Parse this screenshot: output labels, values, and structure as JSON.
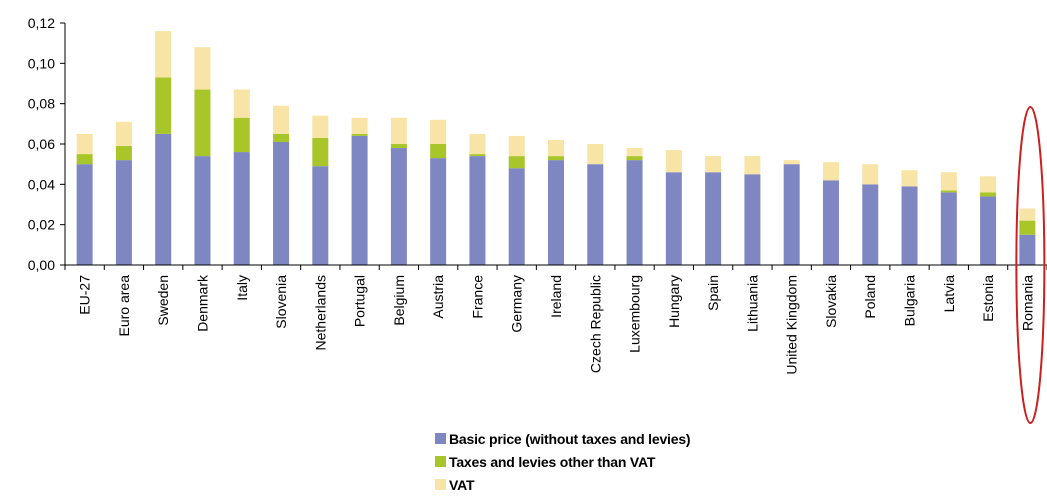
{
  "chart_data": {
    "type": "bar",
    "stacked": true,
    "title": "",
    "xlabel": "",
    "ylabel": "",
    "ylim": [
      0,
      0.12
    ],
    "y_ticks": [
      "0,00",
      "0,02",
      "0,04",
      "0,06",
      "0,08",
      "0,10",
      "0,12"
    ],
    "y_tick_values": [
      0,
      0.02,
      0.04,
      0.06,
      0.08,
      0.1,
      0.12
    ],
    "grid": "horizontal",
    "legend_position": "bottom",
    "categories": [
      "EU-27",
      "Euro area",
      "Sweden",
      "Denmark",
      "Italy",
      "Slovenia",
      "Netherlands",
      "Portugal",
      "Belgium",
      "Austria",
      "France",
      "Germany",
      "Ireland",
      "Czech Republic",
      "Luxembourg",
      "Hungary",
      "Spain",
      "Lithuania",
      "United Kingdom",
      "Slovakia",
      "Poland",
      "Bulgaria",
      "Latvia",
      "Estonia",
      "Romania"
    ],
    "series": [
      {
        "name": "Basic price (without taxes and levies)",
        "color": "#7f87c3",
        "values": [
          0.05,
          0.052,
          0.065,
          0.054,
          0.056,
          0.061,
          0.049,
          0.064,
          0.058,
          0.053,
          0.054,
          0.048,
          0.052,
          0.05,
          0.052,
          0.046,
          0.046,
          0.045,
          0.05,
          0.042,
          0.04,
          0.039,
          0.036,
          0.034,
          0.015
        ]
      },
      {
        "name": "Taxes and levies other than VAT",
        "color": "#a8c62a",
        "values": [
          0.005,
          0.007,
          0.028,
          0.033,
          0.017,
          0.004,
          0.014,
          0.001,
          0.002,
          0.007,
          0.001,
          0.006,
          0.002,
          0.0,
          0.002,
          0.0,
          0.0,
          0.0,
          0.0,
          0.0,
          0.0,
          0.0,
          0.001,
          0.002,
          0.007
        ]
      },
      {
        "name": "VAT",
        "color": "#f7e4a6",
        "values": [
          0.01,
          0.012,
          0.023,
          0.021,
          0.014,
          0.014,
          0.011,
          0.008,
          0.013,
          0.012,
          0.01,
          0.01,
          0.008,
          0.01,
          0.004,
          0.011,
          0.008,
          0.009,
          0.002,
          0.009,
          0.01,
          0.008,
          0.009,
          0.008,
          0.006
        ]
      }
    ],
    "highlight": {
      "category": "Romania",
      "shape": "ellipse",
      "color": "#cc1f1f"
    }
  },
  "legend": {
    "items": [
      {
        "label": "Basic price (without taxes and levies)",
        "color": "#7f87c3"
      },
      {
        "label": "Taxes and levies other than VAT",
        "color": "#a8c62a"
      },
      {
        "label": "VAT",
        "color": "#f7e4a6"
      }
    ]
  }
}
